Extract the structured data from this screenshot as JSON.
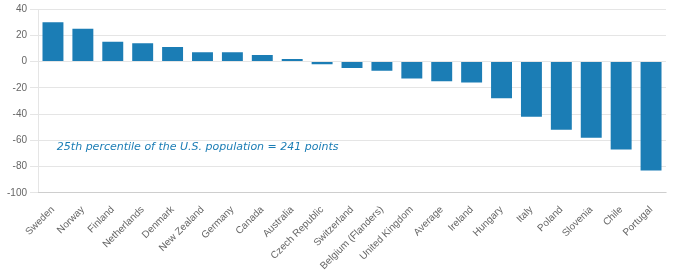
{
  "chart_data": {
    "type": "bar",
    "categories": [
      "Sweden",
      "Norway",
      "Finland",
      "Netherlands",
      "Denmark",
      "New Zealand",
      "Germany",
      "Canada",
      "Australia",
      "Czech Republic",
      "Switzerland",
      "Belgium (Flanders)",
      "United Kingdom",
      "Average",
      "Ireland",
      "Hungary",
      "Italy",
      "Poland",
      "Slovenia",
      "Chile",
      "Portugal"
    ],
    "values": [
      30,
      25,
      15,
      14,
      11,
      7,
      7,
      5,
      2,
      -2,
      -5,
      -7,
      -13,
      -15,
      -16,
      -28,
      -42,
      -52,
      -58,
      -67,
      -83
    ],
    "color": "#1b7db5",
    "ylim": [
      -100,
      40
    ],
    "yticks": [
      -100,
      -80,
      -60,
      -40,
      -20,
      0,
      20,
      40
    ],
    "grid": true,
    "annotation": "25th percentile of the U.S. population = 241 points"
  }
}
